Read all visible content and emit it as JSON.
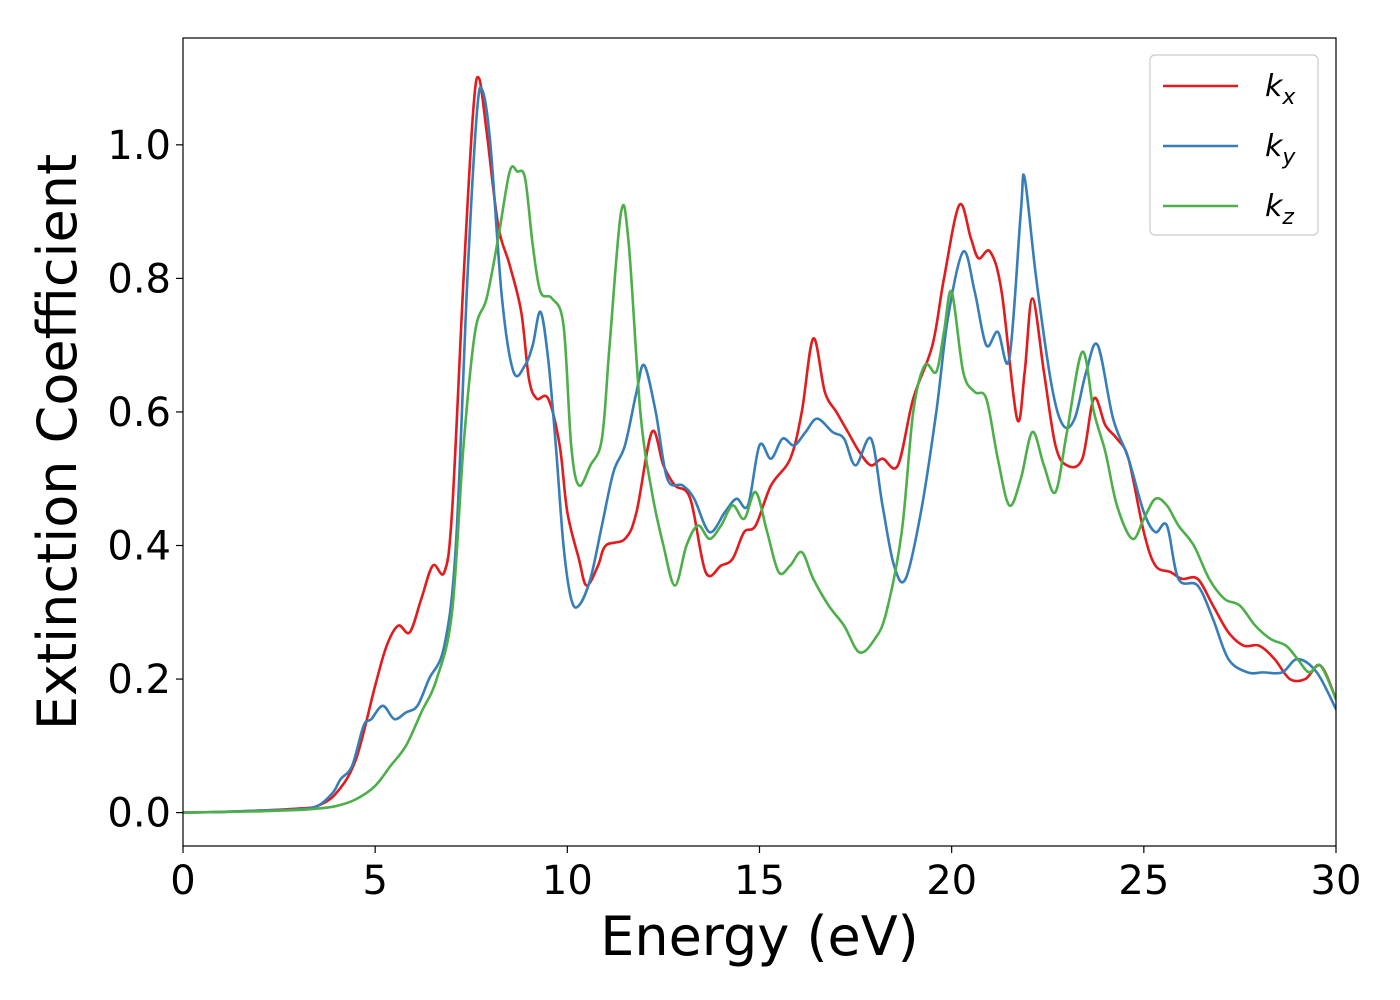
{
  "chart_data": {
    "type": "line",
    "xlabel": "Energy (eV)",
    "ylabel": "Extinction Coefficient",
    "xlim": [
      0,
      30
    ],
    "ylim": [
      -0.05,
      1.16
    ],
    "xticks": [
      0,
      5,
      10,
      15,
      20,
      25,
      30
    ],
    "xtick_labels": [
      "0",
      "5",
      "10",
      "15",
      "20",
      "25",
      "30"
    ],
    "yticks": [
      0.0,
      0.2,
      0.4,
      0.6,
      0.8,
      1.0
    ],
    "ytick_labels": [
      "0.0",
      "0.2",
      "0.4",
      "0.6",
      "0.8",
      "1.0"
    ],
    "grid": false,
    "legend_position": "top-right",
    "series": [
      {
        "name": "kx",
        "label_base": "k",
        "label_sub": "x",
        "color": "#e41a1c",
        "points": [
          [
            0,
            0.0
          ],
          [
            1,
            0.001
          ],
          [
            2,
            0.003
          ],
          [
            3,
            0.006
          ],
          [
            3.5,
            0.01
          ],
          [
            4,
            0.03
          ],
          [
            4.5,
            0.08
          ],
          [
            5,
            0.19
          ],
          [
            5.3,
            0.25
          ],
          [
            5.6,
            0.28
          ],
          [
            5.9,
            0.27
          ],
          [
            6.2,
            0.32
          ],
          [
            6.5,
            0.37
          ],
          [
            6.8,
            0.36
          ],
          [
            7.0,
            0.45
          ],
          [
            7.3,
            0.8
          ],
          [
            7.55,
            1.05
          ],
          [
            7.7,
            1.1
          ],
          [
            7.9,
            1.02
          ],
          [
            8.2,
            0.88
          ],
          [
            8.5,
            0.82
          ],
          [
            8.8,
            0.75
          ],
          [
            9.0,
            0.65
          ],
          [
            9.2,
            0.62
          ],
          [
            9.5,
            0.62
          ],
          [
            9.8,
            0.55
          ],
          [
            10.0,
            0.45
          ],
          [
            10.3,
            0.38
          ],
          [
            10.5,
            0.34
          ],
          [
            10.8,
            0.37
          ],
          [
            11.0,
            0.4
          ],
          [
            11.5,
            0.41
          ],
          [
            11.8,
            0.45
          ],
          [
            12.2,
            0.57
          ],
          [
            12.5,
            0.52
          ],
          [
            12.8,
            0.49
          ],
          [
            13.2,
            0.47
          ],
          [
            13.6,
            0.36
          ],
          [
            14.0,
            0.37
          ],
          [
            14.3,
            0.38
          ],
          [
            14.6,
            0.42
          ],
          [
            14.9,
            0.43
          ],
          [
            15.3,
            0.49
          ],
          [
            15.8,
            0.53
          ],
          [
            16.1,
            0.6
          ],
          [
            16.4,
            0.71
          ],
          [
            16.7,
            0.63
          ],
          [
            17.0,
            0.6
          ],
          [
            17.3,
            0.57
          ],
          [
            17.6,
            0.54
          ],
          [
            17.9,
            0.52
          ],
          [
            18.2,
            0.53
          ],
          [
            18.6,
            0.52
          ],
          [
            19.0,
            0.62
          ],
          [
            19.5,
            0.7
          ],
          [
            19.8,
            0.8
          ],
          [
            20.2,
            0.91
          ],
          [
            20.5,
            0.86
          ],
          [
            20.7,
            0.83
          ],
          [
            21.0,
            0.84
          ],
          [
            21.3,
            0.78
          ],
          [
            21.7,
            0.59
          ],
          [
            21.9,
            0.66
          ],
          [
            22.1,
            0.77
          ],
          [
            22.4,
            0.66
          ],
          [
            22.7,
            0.55
          ],
          [
            23.0,
            0.52
          ],
          [
            23.4,
            0.53
          ],
          [
            23.7,
            0.62
          ],
          [
            24.0,
            0.58
          ],
          [
            24.3,
            0.56
          ],
          [
            24.6,
            0.53
          ],
          [
            25.0,
            0.42
          ],
          [
            25.3,
            0.37
          ],
          [
            25.7,
            0.36
          ],
          [
            26.0,
            0.35
          ],
          [
            26.4,
            0.35
          ],
          [
            26.8,
            0.31
          ],
          [
            27.2,
            0.27
          ],
          [
            27.6,
            0.25
          ],
          [
            28.0,
            0.25
          ],
          [
            28.4,
            0.23
          ],
          [
            28.8,
            0.2
          ],
          [
            29.2,
            0.2
          ],
          [
            29.6,
            0.22
          ],
          [
            30,
            0.17
          ]
        ]
      },
      {
        "name": "ky",
        "label_base": "k",
        "label_sub": "y",
        "color": "#377eb8",
        "points": [
          [
            0,
            0.0
          ],
          [
            1,
            0.001
          ],
          [
            2,
            0.003
          ],
          [
            3,
            0.005
          ],
          [
            3.5,
            0.01
          ],
          [
            3.9,
            0.03
          ],
          [
            4.1,
            0.05
          ],
          [
            4.4,
            0.07
          ],
          [
            4.7,
            0.13
          ],
          [
            4.9,
            0.14
          ],
          [
            5.2,
            0.16
          ],
          [
            5.5,
            0.14
          ],
          [
            5.8,
            0.15
          ],
          [
            6.1,
            0.16
          ],
          [
            6.4,
            0.2
          ],
          [
            6.8,
            0.25
          ],
          [
            7.1,
            0.4
          ],
          [
            7.4,
            0.8
          ],
          [
            7.65,
            1.05
          ],
          [
            7.8,
            1.08
          ],
          [
            8.0,
            1.0
          ],
          [
            8.3,
            0.77
          ],
          [
            8.6,
            0.66
          ],
          [
            8.9,
            0.67
          ],
          [
            9.1,
            0.7
          ],
          [
            9.3,
            0.75
          ],
          [
            9.5,
            0.68
          ],
          [
            9.7,
            0.55
          ],
          [
            9.9,
            0.4
          ],
          [
            10.1,
            0.32
          ],
          [
            10.3,
            0.31
          ],
          [
            10.6,
            0.35
          ],
          [
            10.9,
            0.43
          ],
          [
            11.2,
            0.51
          ],
          [
            11.5,
            0.55
          ],
          [
            11.8,
            0.63
          ],
          [
            12.0,
            0.67
          ],
          [
            12.3,
            0.6
          ],
          [
            12.6,
            0.5
          ],
          [
            13.0,
            0.49
          ],
          [
            13.3,
            0.47
          ],
          [
            13.7,
            0.42
          ],
          [
            14.1,
            0.45
          ],
          [
            14.4,
            0.47
          ],
          [
            14.7,
            0.46
          ],
          [
            15.0,
            0.55
          ],
          [
            15.3,
            0.53
          ],
          [
            15.6,
            0.56
          ],
          [
            15.9,
            0.55
          ],
          [
            16.2,
            0.57
          ],
          [
            16.5,
            0.59
          ],
          [
            16.9,
            0.57
          ],
          [
            17.2,
            0.56
          ],
          [
            17.5,
            0.52
          ],
          [
            17.9,
            0.56
          ],
          [
            18.2,
            0.46
          ],
          [
            18.5,
            0.37
          ],
          [
            18.8,
            0.35
          ],
          [
            19.2,
            0.45
          ],
          [
            19.6,
            0.6
          ],
          [
            19.9,
            0.74
          ],
          [
            20.3,
            0.84
          ],
          [
            20.6,
            0.78
          ],
          [
            20.9,
            0.7
          ],
          [
            21.2,
            0.72
          ],
          [
            21.5,
            0.68
          ],
          [
            21.8,
            0.9
          ],
          [
            21.9,
            0.95
          ],
          [
            22.2,
            0.8
          ],
          [
            22.6,
            0.64
          ],
          [
            22.9,
            0.58
          ],
          [
            23.2,
            0.59
          ],
          [
            23.5,
            0.66
          ],
          [
            23.8,
            0.7
          ],
          [
            24.2,
            0.59
          ],
          [
            24.6,
            0.53
          ],
          [
            25.0,
            0.45
          ],
          [
            25.3,
            0.42
          ],
          [
            25.6,
            0.43
          ],
          [
            25.9,
            0.35
          ],
          [
            26.4,
            0.34
          ],
          [
            26.8,
            0.29
          ],
          [
            27.2,
            0.23
          ],
          [
            27.7,
            0.21
          ],
          [
            28.1,
            0.21
          ],
          [
            28.6,
            0.21
          ],
          [
            29.0,
            0.23
          ],
          [
            29.5,
            0.21
          ],
          [
            30,
            0.155
          ]
        ]
      },
      {
        "name": "kz",
        "label_base": "k",
        "label_sub": "z",
        "color": "#4daf4a",
        "points": [
          [
            0,
            0.0
          ],
          [
            1,
            0.001
          ],
          [
            2,
            0.002
          ],
          [
            3,
            0.004
          ],
          [
            3.5,
            0.006
          ],
          [
            4,
            0.01
          ],
          [
            4.5,
            0.02
          ],
          [
            5.0,
            0.04
          ],
          [
            5.4,
            0.07
          ],
          [
            5.8,
            0.1
          ],
          [
            6.2,
            0.15
          ],
          [
            6.6,
            0.2
          ],
          [
            7.0,
            0.3
          ],
          [
            7.3,
            0.55
          ],
          [
            7.6,
            0.72
          ],
          [
            7.9,
            0.77
          ],
          [
            8.2,
            0.86
          ],
          [
            8.5,
            0.96
          ],
          [
            8.7,
            0.96
          ],
          [
            8.9,
            0.95
          ],
          [
            9.1,
            0.85
          ],
          [
            9.3,
            0.78
          ],
          [
            9.6,
            0.77
          ],
          [
            9.9,
            0.73
          ],
          [
            10.1,
            0.55
          ],
          [
            10.3,
            0.49
          ],
          [
            10.6,
            0.52
          ],
          [
            10.9,
            0.56
          ],
          [
            11.1,
            0.7
          ],
          [
            11.4,
            0.9
          ],
          [
            11.6,
            0.85
          ],
          [
            11.9,
            0.6
          ],
          [
            12.2,
            0.48
          ],
          [
            12.5,
            0.4
          ],
          [
            12.8,
            0.34
          ],
          [
            13.1,
            0.4
          ],
          [
            13.4,
            0.43
          ],
          [
            13.7,
            0.41
          ],
          [
            14.0,
            0.43
          ],
          [
            14.3,
            0.46
          ],
          [
            14.6,
            0.44
          ],
          [
            14.9,
            0.48
          ],
          [
            15.2,
            0.42
          ],
          [
            15.5,
            0.36
          ],
          [
            15.8,
            0.37
          ],
          [
            16.1,
            0.39
          ],
          [
            16.4,
            0.35
          ],
          [
            16.8,
            0.31
          ],
          [
            17.2,
            0.28
          ],
          [
            17.6,
            0.24
          ],
          [
            18.0,
            0.26
          ],
          [
            18.3,
            0.3
          ],
          [
            18.7,
            0.42
          ],
          [
            19.0,
            0.6
          ],
          [
            19.3,
            0.67
          ],
          [
            19.6,
            0.66
          ],
          [
            19.8,
            0.72
          ],
          [
            20.0,
            0.78
          ],
          [
            20.3,
            0.66
          ],
          [
            20.6,
            0.63
          ],
          [
            20.9,
            0.62
          ],
          [
            21.2,
            0.53
          ],
          [
            21.5,
            0.46
          ],
          [
            21.8,
            0.5
          ],
          [
            22.1,
            0.57
          ],
          [
            22.4,
            0.52
          ],
          [
            22.7,
            0.48
          ],
          [
            23.0,
            0.57
          ],
          [
            23.4,
            0.69
          ],
          [
            23.7,
            0.6
          ],
          [
            24.0,
            0.54
          ],
          [
            24.3,
            0.46
          ],
          [
            24.7,
            0.41
          ],
          [
            25.0,
            0.44
          ],
          [
            25.3,
            0.47
          ],
          [
            25.6,
            0.46
          ],
          [
            25.9,
            0.43
          ],
          [
            26.3,
            0.4
          ],
          [
            26.7,
            0.35
          ],
          [
            27.1,
            0.32
          ],
          [
            27.5,
            0.31
          ],
          [
            27.9,
            0.28
          ],
          [
            28.3,
            0.26
          ],
          [
            28.7,
            0.25
          ],
          [
            29.0,
            0.23
          ],
          [
            29.3,
            0.21
          ],
          [
            29.6,
            0.22
          ],
          [
            30,
            0.17
          ]
        ]
      }
    ]
  }
}
